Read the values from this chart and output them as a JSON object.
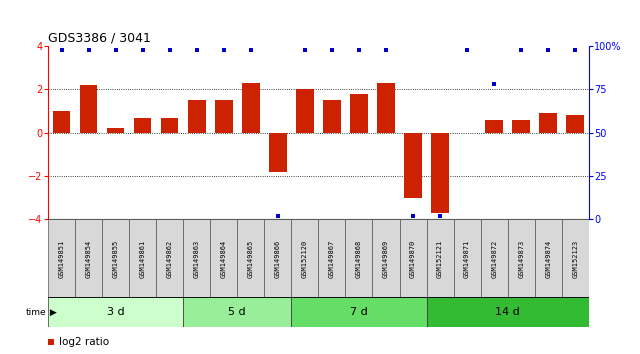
{
  "title": "GDS3386 / 3041",
  "samples": [
    "GSM149851",
    "GSM149854",
    "GSM149855",
    "GSM149861",
    "GSM149862",
    "GSM149863",
    "GSM149864",
    "GSM149865",
    "GSM149866",
    "GSM152120",
    "GSM149867",
    "GSM149868",
    "GSM149869",
    "GSM149870",
    "GSM152121",
    "GSM149871",
    "GSM149872",
    "GSM149873",
    "GSM149874",
    "GSM152123"
  ],
  "log2_ratio": [
    1.0,
    2.2,
    0.2,
    0.7,
    0.7,
    1.5,
    1.5,
    2.3,
    -1.8,
    2.0,
    1.5,
    1.8,
    2.3,
    -3.0,
    -3.7,
    0.0,
    0.6,
    0.6,
    0.9,
    0.8
  ],
  "percentile": [
    100,
    100,
    100,
    100,
    100,
    100,
    100,
    100,
    0,
    100,
    100,
    100,
    100,
    0,
    0,
    100,
    75,
    100,
    100,
    100
  ],
  "groups": [
    {
      "label": "3 d",
      "start": 0,
      "end": 5,
      "color": "#ccffcc"
    },
    {
      "label": "5 d",
      "start": 5,
      "end": 9,
      "color": "#99ee99"
    },
    {
      "label": "7 d",
      "start": 9,
      "end": 14,
      "color": "#66dd66"
    },
    {
      "label": "14 d",
      "start": 14,
      "end": 20,
      "color": "#33bb33"
    }
  ],
  "bar_color": "#cc2200",
  "dot_color": "#0000cc",
  "ylim_left": [
    -4,
    4
  ],
  "ylim_right": [
    0,
    100
  ],
  "yticks_left": [
    -4,
    -2,
    0,
    2,
    4
  ],
  "yticks_right": [
    0,
    25,
    50,
    75,
    100
  ],
  "yticklabels_right": [
    "0",
    "25",
    "50",
    "75",
    "100%"
  ],
  "dotted_lines": [
    -2,
    0,
    2
  ],
  "background_color": "#ffffff"
}
